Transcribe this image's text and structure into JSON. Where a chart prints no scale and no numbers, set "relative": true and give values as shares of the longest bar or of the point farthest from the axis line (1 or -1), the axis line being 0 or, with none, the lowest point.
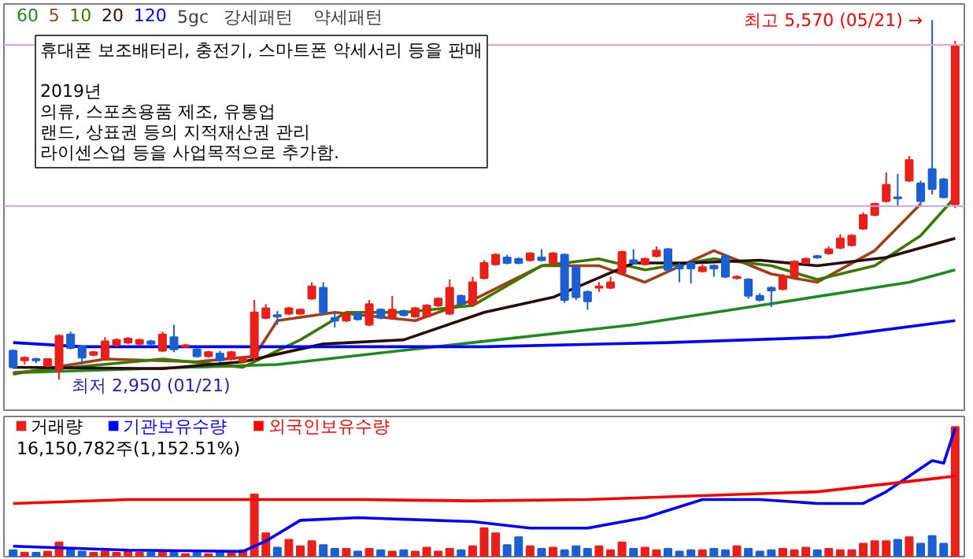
{
  "chart_data": [
    {
      "type": "candlestick",
      "tick_labels": false,
      "legend": "top left",
      "categories": [
        null,
        null,
        null,
        null,
        null,
        null,
        null,
        null,
        null,
        null,
        null,
        null,
        null,
        null,
        null,
        null,
        null,
        null,
        null,
        null,
        null,
        null,
        null,
        null,
        null,
        null,
        null,
        null,
        null,
        null,
        null,
        null,
        null,
        null,
        null,
        null,
        null,
        null,
        null,
        null,
        null,
        null,
        null,
        null,
        null,
        null,
        null,
        null,
        null,
        null,
        null,
        null,
        null,
        null,
        null,
        null,
        null,
        null,
        null,
        null,
        null,
        null,
        null,
        null,
        null,
        null,
        null,
        null,
        null,
        null,
        null,
        null,
        null,
        null,
        null,
        null,
        null,
        null,
        null,
        null,
        null,
        null,
        null
      ],
      "ohlc": [
        [
          3160,
          3170,
          3030,
          3040
        ],
        [
          3090,
          3120,
          3060,
          3110
        ],
        [
          3100,
          3110,
          3070,
          3090
        ],
        [
          3050,
          3100,
          3040,
          3100
        ],
        [
          3020,
          3280,
          2950,
          3270
        ],
        [
          3280,
          3300,
          3170,
          3180
        ],
        [
          3190,
          3200,
          3060,
          3110
        ],
        [
          3130,
          3160,
          3120,
          3150
        ],
        [
          3100,
          3260,
          3090,
          3230
        ],
        [
          3200,
          3250,
          3190,
          3240
        ],
        [
          3220,
          3260,
          3210,
          3250
        ],
        [
          3210,
          3250,
          3200,
          3240
        ],
        [
          3230,
          3240,
          3200,
          3210
        ],
        [
          3160,
          3300,
          3150,
          3280
        ],
        [
          3260,
          3350,
          3150,
          3170
        ],
        [
          3190,
          3210,
          3180,
          3200
        ],
        [
          3170,
          3180,
          3110,
          3120
        ],
        [
          3120,
          3160,
          3110,
          3150
        ],
        [
          3140,
          3160,
          3080,
          3090
        ],
        [
          3100,
          3160,
          3090,
          3150
        ],
        [
          3080,
          3110,
          3070,
          3100
        ],
        [
          3110,
          3530,
          3090,
          3440
        ],
        [
          3400,
          3500,
          3390,
          3470
        ],
        [
          3420,
          3450,
          3350,
          3410
        ],
        [
          3430,
          3480,
          3420,
          3470
        ],
        [
          3430,
          3470,
          3420,
          3460
        ],
        [
          3540,
          3660,
          3530,
          3630
        ],
        [
          3620,
          3660,
          3420,
          3440
        ],
        [
          3400,
          3440,
          3330,
          3380
        ],
        [
          3380,
          3440,
          3370,
          3430
        ],
        [
          3430,
          3440,
          3380,
          3390
        ],
        [
          3350,
          3530,
          3340,
          3500
        ],
        [
          3460,
          3470,
          3390,
          3400
        ],
        [
          3400,
          3560,
          3390,
          3460
        ],
        [
          3450,
          3460,
          3410,
          3420
        ],
        [
          3410,
          3480,
          3400,
          3470
        ],
        [
          3410,
          3500,
          3400,
          3490
        ],
        [
          3490,
          3550,
          3480,
          3540
        ],
        [
          3430,
          3680,
          3420,
          3620
        ],
        [
          3560,
          3570,
          3490,
          3500
        ],
        [
          3500,
          3700,
          3490,
          3660
        ],
        [
          3690,
          3820,
          3680,
          3800
        ],
        [
          3790,
          3870,
          3780,
          3860
        ],
        [
          3840,
          3860,
          3790,
          3800
        ],
        [
          3830,
          3840,
          3790,
          3800
        ],
        [
          3820,
          3880,
          3810,
          3870
        ],
        [
          3840,
          3900,
          3810,
          3820
        ],
        [
          3800,
          3880,
          3790,
          3870
        ],
        [
          3860,
          3870,
          3510,
          3530
        ],
        [
          3770,
          3780,
          3530,
          3550
        ],
        [
          3590,
          3600,
          3460,
          3520
        ],
        [
          3620,
          3660,
          3590,
          3630
        ],
        [
          3620,
          3700,
          3610,
          3660
        ],
        [
          3730,
          3890,
          3720,
          3880
        ],
        [
          3820,
          3900,
          3790,
          3800
        ],
        [
          3790,
          3840,
          3780,
          3830
        ],
        [
          3850,
          3920,
          3840,
          3890
        ],
        [
          3900,
          3910,
          3740,
          3750
        ],
        [
          3780,
          3800,
          3660,
          3760
        ],
        [
          3800,
          3810,
          3650,
          3760
        ],
        [
          3740,
          3790,
          3730,
          3770
        ],
        [
          3780,
          3790,
          3700,
          3760
        ],
        [
          3850,
          3860,
          3690,
          3700
        ],
        [
          3690,
          3710,
          3680,
          3700
        ],
        [
          3680,
          3690,
          3540,
          3560
        ],
        [
          3560,
          3580,
          3520,
          3530
        ],
        [
          3620,
          3630,
          3480,
          3600
        ],
        [
          3610,
          3720,
          3600,
          3700
        ],
        [
          3700,
          3820,
          3690,
          3810
        ],
        [
          3800,
          3840,
          3790,
          3830
        ],
        [
          3850,
          3860,
          3830,
          3840
        ],
        [
          3870,
          3920,
          3860,
          3900
        ],
        [
          3910,
          4010,
          3900,
          3980
        ],
        [
          3930,
          4010,
          3920,
          4000
        ],
        [
          4050,
          4170,
          4040,
          4150
        ],
        [
          4150,
          4240,
          4140,
          4230
        ],
        [
          4250,
          4460,
          4240,
          4370
        ],
        [
          4280,
          4450,
          4210,
          4270
        ],
        [
          4400,
          4580,
          4390,
          4550
        ],
        [
          4380,
          4400,
          4230,
          4250
        ],
        [
          4484,
          5570,
          4300,
          4339
        ],
        [
          4410,
          4420,
          4270,
          4280
        ],
        [
          4227,
          5420,
          4200,
          5380
        ]
      ],
      "colors": [
        "#1b5fd0",
        "#e8201a",
        "#1b5fd0",
        "#e8201a",
        "#e8201a",
        "#1b5fd0",
        "#1b5fd0",
        "#e8201a",
        "#e8201a",
        "#e8201a",
        "#e8201a",
        "#e8201a",
        "#1b5fd0",
        "#e8201a",
        "#1b5fd0",
        "#e8201a",
        "#1b5fd0",
        "#e8201a",
        "#1b5fd0",
        "#e8201a",
        "#e8201a",
        "#e8201a",
        "#e8201a",
        "#1b5fd0",
        "#e8201a",
        "#e8201a",
        "#e8201a",
        "#1b5fd0",
        "#1b5fd0",
        "#e8201a",
        "#1b5fd0",
        "#e8201a",
        "#1b5fd0",
        "#e8201a",
        "#1b5fd0",
        "#e8201a",
        "#e8201a",
        "#e8201a",
        "#e8201a",
        "#1b5fd0",
        "#e8201a",
        "#e8201a",
        "#e8201a",
        "#1b5fd0",
        "#1b5fd0",
        "#e8201a",
        "#1b5fd0",
        "#e8201a",
        "#1b5fd0",
        "#1b5fd0",
        "#1b5fd0",
        "#e8201a",
        "#e8201a",
        "#e8201a",
        "#1b5fd0",
        "#e8201a",
        "#e8201a",
        "#1b5fd0",
        "#1b5fd0",
        "#1b5fd0",
        "#e8201a",
        "#1b5fd0",
        "#1b5fd0",
        "#e8201a",
        "#1b5fd0",
        "#1b5fd0",
        "#1b5fd0",
        "#e8201a",
        "#e8201a",
        "#e8201a",
        "#1b5fd0",
        "#e8201a",
        "#e8201a",
        "#e8201a",
        "#e8201a",
        "#e8201a",
        "#e8201a",
        "#1b5fd0",
        "#e8201a",
        "#1b5fd0",
        "#1b5fd0",
        "#1b5fd0",
        "#e8201a"
      ],
      "series": [
        {
          "name": "60",
          "type": "line",
          "color": "#1f8a1f",
          "values": [
            3000,
            null,
            null,
            null,
            null,
            null,
            null,
            null,
            null,
            null,
            null,
            null,
            null,
            null,
            null,
            null,
            null,
            null,
            null,
            null,
            null,
            null,
            null,
            3060,
            null,
            null,
            null,
            null,
            null,
            null,
            null,
            null,
            null,
            null,
            null,
            null,
            null,
            null,
            null,
            null,
            3220,
            null,
            null,
            null,
            null,
            null,
            null,
            null,
            null,
            null,
            null,
            null,
            null,
            null,
            3350,
            null,
            null,
            null,
            null,
            null,
            null,
            null,
            null,
            null,
            null,
            3490,
            null,
            null,
            null,
            null,
            null,
            null,
            null,
            null,
            null,
            null,
            null,
            null,
            3660,
            null,
            null,
            null,
            3750
          ]
        },
        {
          "name": "5",
          "type": "line",
          "color": "#a0401a",
          "values": [
            2990,
            null,
            null,
            null,
            null,
            null,
            null,
            null,
            3100,
            null,
            null,
            null,
            null,
            null,
            null,
            null,
            3080,
            null,
            null,
            null,
            null,
            3120,
            null,
            3380,
            null,
            null,
            null,
            null,
            3440,
            null,
            null,
            null,
            null,
            null,
            null,
            3380,
            null,
            null,
            null,
            null,
            3530,
            null,
            null,
            null,
            null,
            null,
            3780,
            null,
            null,
            null,
            null,
            3780,
            null,
            null,
            null,
            3660,
            null,
            null,
            null,
            null,
            null,
            3890,
            null,
            null,
            null,
            null,
            3720,
            null,
            null,
            null,
            3660,
            null,
            null,
            null,
            null,
            3890,
            null,
            null,
            null,
            4230,
            null,
            null,
            null
          ]
        },
        {
          "name": "10",
          "type": "line",
          "color": "#3a7a00",
          "values": [
            3000,
            null,
            null,
            null,
            null,
            null,
            null,
            null,
            null,
            null,
            null,
            null,
            null,
            3100,
            null,
            null,
            null,
            null,
            null,
            null,
            3040,
            null,
            null,
            null,
            null,
            3240,
            null,
            null,
            null,
            3440,
            null,
            null,
            null,
            null,
            3440,
            null,
            null,
            null,
            null,
            null,
            3490,
            null,
            null,
            null,
            null,
            null,
            3780,
            null,
            null,
            null,
            null,
            3830,
            null,
            null,
            null,
            3750,
            null,
            null,
            null,
            null,
            null,
            3830,
            null,
            null,
            null,
            null,
            3780,
            null,
            null,
            null,
            3680,
            null,
            null,
            null,
            null,
            3780,
            null,
            null,
            null,
            4000,
            null,
            null,
            4280
          ]
        },
        {
          "name": "20",
          "type": "line",
          "color": "#2a0a0a",
          "values": [
            3040,
            null,
            null,
            null,
            null,
            null,
            null,
            null,
            null,
            null,
            null,
            null,
            null,
            3030,
            null,
            null,
            null,
            null,
            null,
            null,
            3080,
            null,
            null,
            null,
            null,
            null,
            null,
            3210,
            null,
            null,
            null,
            null,
            null,
            null,
            3240,
            null,
            null,
            null,
            null,
            null,
            null,
            3440,
            null,
            null,
            null,
            null,
            null,
            3550,
            null,
            null,
            null,
            null,
            null,
            null,
            3800,
            null,
            null,
            null,
            null,
            3800,
            null,
            null,
            null,
            null,
            null,
            3820,
            null,
            null,
            null,
            null,
            3780,
            null,
            null,
            null,
            null,
            null,
            3840,
            null,
            null,
            null,
            null,
            null,
            3980
          ]
        },
        {
          "name": "120",
          "type": "line",
          "color": "#0000ff",
          "values": [
            3220,
            null,
            null,
            null,
            null,
            null,
            3190,
            null,
            null,
            null,
            null,
            null,
            null,
            null,
            null,
            null,
            null,
            null,
            null,
            null,
            null,
            null,
            null,
            null,
            null,
            null,
            null,
            null,
            null,
            null,
            null,
            null,
            null,
            null,
            null,
            null,
            null,
            null,
            null,
            null,
            null,
            3190,
            null,
            null,
            null,
            null,
            null,
            null,
            null,
            null,
            null,
            null,
            null,
            null,
            null,
            null,
            null,
            3220,
            null,
            null,
            null,
            null,
            null,
            null,
            null,
            null,
            null,
            null,
            null,
            null,
            null,
            3260,
            null,
            null,
            null,
            null,
            null,
            null,
            null,
            null,
            null,
            null,
            3380
          ]
        }
      ],
      "ref_lines": [
        {
          "axis": "y",
          "value": 5390,
          "color": "#f0a0c8"
        },
        {
          "axis": "y",
          "value": 4215,
          "color": "#c8a0f0"
        }
      ],
      "annotations": [
        "5gc",
        "강세패턴",
        "약세패턴",
        "휴대폰 보조배터리, 충전기, 스마트폰 악세서리 등을 판매\n\n2019년\n의류, 스포츠용품 제조, 유통업\n랜드, 상표권 등의 지적재산권 관리\n라이센스업 등을 사업목적으로 추가함.",
        "최고 5,570 (05/21) →",
        "최저 2,950 (01/21)"
      ]
    },
    {
      "type": "bar",
      "relative": true,
      "tick_labels": false,
      "legend": "top left",
      "categories": [
        null,
        null,
        null,
        null,
        null,
        null,
        null,
        null,
        null,
        null,
        null,
        null,
        null,
        null,
        null,
        null,
        null,
        null,
        null,
        null,
        null,
        null,
        null,
        null,
        null,
        null,
        null,
        null,
        null,
        null,
        null,
        null,
        null,
        null,
        null,
        null,
        null,
        null,
        null,
        null,
        null,
        null,
        null,
        null,
        null,
        null,
        null,
        null,
        null,
        null,
        null,
        null,
        null,
        null,
        null,
        null,
        null,
        null,
        null,
        null,
        null,
        null,
        null,
        null,
        null,
        null,
        null,
        null,
        null,
        null,
        null,
        null,
        null,
        null,
        null,
        null,
        null,
        null,
        null,
        null,
        null,
        null,
        null
      ],
      "series": [
        {
          "name": "거래량",
          "color": "#000000",
          "colors": [
            "#1b5fd0",
            "#e8201a",
            "#1b5fd0",
            "#e8201a",
            "#e8201a",
            "#1b5fd0",
            "#1b5fd0",
            "#e8201a",
            "#e8201a",
            "#e8201a",
            "#e8201a",
            "#e8201a",
            "#1b5fd0",
            "#e8201a",
            "#1b5fd0",
            "#e8201a",
            "#1b5fd0",
            "#e8201a",
            "#1b5fd0",
            "#e8201a",
            "#e8201a",
            "#e8201a",
            "#e8201a",
            "#1b5fd0",
            "#e8201a",
            "#e8201a",
            "#e8201a",
            "#1b5fd0",
            "#1b5fd0",
            "#e8201a",
            "#1b5fd0",
            "#e8201a",
            "#1b5fd0",
            "#e8201a",
            "#1b5fd0",
            "#e8201a",
            "#e8201a",
            "#e8201a",
            "#e8201a",
            "#1b5fd0",
            "#e8201a",
            "#e8201a",
            "#e8201a",
            "#1b5fd0",
            "#1b5fd0",
            "#e8201a",
            "#1b5fd0",
            "#e8201a",
            "#1b5fd0",
            "#1b5fd0",
            "#1b5fd0",
            "#e8201a",
            "#e8201a",
            "#e8201a",
            "#1b5fd0",
            "#e8201a",
            "#e8201a",
            "#1b5fd0",
            "#1b5fd0",
            "#1b5fd0",
            "#e8201a",
            "#1b5fd0",
            "#1b5fd0",
            "#e8201a",
            "#1b5fd0",
            "#1b5fd0",
            "#1b5fd0",
            "#e8201a",
            "#e8201a",
            "#e8201a",
            "#1b5fd0",
            "#e8201a",
            "#e8201a",
            "#e8201a",
            "#e8201a",
            "#e8201a",
            "#e8201a",
            "#1b5fd0",
            "#e8201a",
            "#1b5fd0",
            "#1b5fd0",
            "#1b5fd0",
            "#e8201a"
          ],
          "values": [
            0.05,
            0.03,
            0.03,
            0.04,
            0.11,
            0.06,
            0.04,
            0.03,
            0.04,
            0.03,
            0.04,
            0.03,
            0.03,
            0.04,
            0.03,
            0.02,
            0.03,
            0.02,
            0.04,
            0.03,
            0.05,
            0.48,
            0.18,
            0.07,
            0.13,
            0.08,
            0.12,
            0.09,
            0.06,
            0.06,
            0.04,
            0.06,
            0.05,
            0.04,
            0.05,
            0.04,
            0.07,
            0.04,
            0.06,
            0.05,
            0.08,
            0.22,
            0.18,
            0.09,
            0.15,
            0.08,
            0.06,
            0.07,
            0.05,
            0.08,
            0.06,
            0.08,
            0.05,
            0.11,
            0.06,
            0.07,
            0.05,
            0.06,
            0.04,
            0.05,
            0.05,
            0.06,
            0.05,
            0.08,
            0.06,
            0.04,
            0.05,
            0.06,
            0.05,
            0.07,
            0.05,
            0.06,
            0.05,
            0.05,
            0.1,
            0.12,
            0.12,
            0.13,
            0.15,
            0.1,
            0.16,
            0.1,
            1.0
          ]
        },
        {
          "name": "기관보유수량",
          "type": "line",
          "color": "#0000ff",
          "values": [
            0.08,
            null,
            null,
            null,
            null,
            null,
            null,
            null,
            null,
            null,
            0.05,
            null,
            null,
            null,
            null,
            null,
            null,
            null,
            null,
            null,
            0.04,
            null,
            0.12,
            null,
            null,
            0.28,
            null,
            null,
            null,
            null,
            0.3,
            null,
            null,
            null,
            null,
            null,
            null,
            null,
            null,
            null,
            0.27,
            null,
            null,
            null,
            null,
            0.22,
            null,
            null,
            null,
            null,
            0.22,
            null,
            null,
            null,
            null,
            0.3,
            null,
            null,
            null,
            null,
            0.44,
            null,
            null,
            null,
            null,
            0.44,
            null,
            null,
            null,
            null,
            0.41,
            null,
            null,
            null,
            0.41,
            null,
            0.5,
            null,
            0.62,
            null,
            0.74,
            0.72,
            0.99
          ]
        },
        {
          "name": "외국인보유수량",
          "type": "line",
          "color": "#ff0000",
          "values": [
            0.41,
            null,
            null,
            null,
            null,
            null,
            null,
            null,
            null,
            null,
            0.44,
            null,
            null,
            null,
            null,
            null,
            null,
            null,
            null,
            null,
            0.44,
            null,
            null,
            null,
            null,
            null,
            null,
            null,
            null,
            null,
            0.44,
            null,
            null,
            null,
            null,
            null,
            null,
            null,
            null,
            null,
            0.43,
            null,
            null,
            null,
            null,
            null,
            null,
            null,
            null,
            null,
            0.44,
            null,
            null,
            null,
            null,
            null,
            null,
            null,
            null,
            null,
            0.47,
            null,
            null,
            null,
            null,
            null,
            null,
            null,
            null,
            null,
            0.5,
            null,
            null,
            null,
            null,
            0.55,
            null,
            null,
            null,
            null,
            0.6,
            null,
            0.62
          ]
        }
      ],
      "annotations": [
        "16,150,782주(1,152.51%)"
      ]
    }
  ]
}
